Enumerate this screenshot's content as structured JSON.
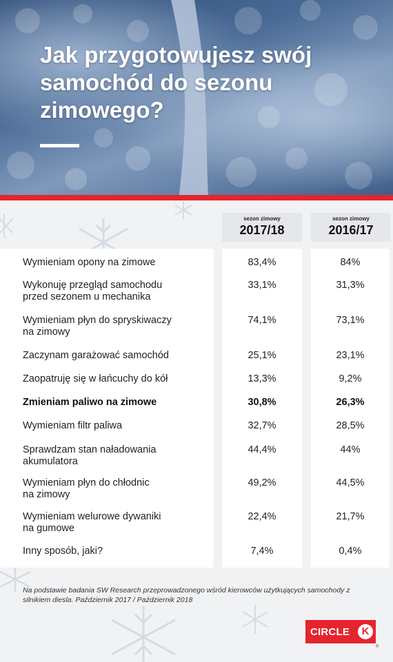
{
  "title": "Jak przygotowujesz swój samochód do sezonu zimowego?",
  "colors": {
    "accent_red": "#e4252d",
    "hero_blue": "#3e5e89",
    "panel_bg": "#f1f2f4"
  },
  "icons": [
    "snowflake-icon",
    "circle-k-logo"
  ],
  "chart_data": {
    "type": "table",
    "columns": [
      {
        "small": "sezon zimowy",
        "season": "2017/18"
      },
      {
        "small": "sezon zimowy",
        "season": "2016/17"
      }
    ],
    "rows": [
      {
        "label": "Wymieniam opony na zimowe",
        "v1": "83,4%",
        "v2": "84%",
        "bold": false
      },
      {
        "label": "Wykonuję przegląd samochodu\nprzed sezonem u mechanika",
        "v1": "33,1%",
        "v2": "31,3%",
        "bold": false
      },
      {
        "label": "Wymieniam płyn do spryskiwaczy\nna zimowy",
        "v1": "74,1%",
        "v2": "73,1%",
        "bold": false
      },
      {
        "label": "Zaczynam garażować samochód",
        "v1": "25,1%",
        "v2": "23,1%",
        "bold": false
      },
      {
        "label": "Zaopatruję się w łańcuchy do kół",
        "v1": "13,3%",
        "v2": "9,2%",
        "bold": false
      },
      {
        "label": "Zmieniam paliwo na zimowe",
        "v1": "30,8%",
        "v2": "26,3%",
        "bold": true
      },
      {
        "label": "Wymieniam filtr paliwa",
        "v1": "32,7%",
        "v2": "28,5%",
        "bold": false
      },
      {
        "label": "Sprawdzam stan naładowania\nakumulatora",
        "v1": "44,4%",
        "v2": "44%",
        "bold": false
      },
      {
        "label": "Wymieniam płyn do chłodnic\nna zimowy",
        "v1": "49,2%",
        "v2": "44,5%",
        "bold": false
      },
      {
        "label": "Wymieniam welurowe dywaniki\nna gumowe",
        "v1": "22,4%",
        "v2": "21,7%",
        "bold": false
      },
      {
        "label": "Inny sposób, jaki?",
        "v1": "7,4%",
        "v2": "0,4%",
        "bold": false
      }
    ]
  },
  "footnote": "Na podstawie badania SW Research przeprowadzonego wśród kierowców użytkujących samochody z silnikiem diesla. Październik 2017 / Październik 2018",
  "logo": {
    "text": "CIRCLE",
    "mark": "K",
    "registered": "®"
  }
}
